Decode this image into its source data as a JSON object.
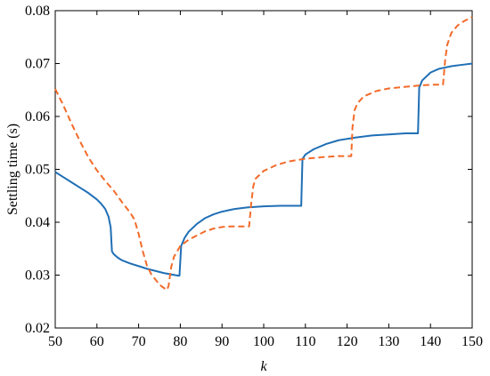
{
  "chart_data": {
    "type": "line",
    "xlabel": "k",
    "ylabel": "Settling time (s)",
    "xlim": [
      50,
      150
    ],
    "ylim": [
      0.02,
      0.08
    ],
    "xticks": [
      50,
      60,
      70,
      80,
      90,
      100,
      110,
      120,
      130,
      140,
      150
    ],
    "yticks": [
      0.02,
      0.03,
      0.04,
      0.05,
      0.06,
      0.07,
      0.08
    ],
    "ytick_labels": [
      "0.02",
      "0.03",
      "0.04",
      "0.05",
      "0.06",
      "0.07",
      "0.08"
    ],
    "grid": false,
    "series": [
      {
        "color": "#1f6fb5",
        "style": "solid",
        "x": [
          50,
          52,
          54,
          56,
          58,
          60,
          61,
          62,
          62.8,
          63.3,
          63.6,
          64,
          65,
          66,
          68,
          70,
          72,
          74,
          76,
          78,
          79.5,
          79.8,
          80.2,
          81,
          82,
          84,
          86,
          88,
          90,
          93,
          96,
          100,
          104,
          109,
          109.3,
          109.6,
          110,
          112,
          115,
          118,
          122,
          126,
          130,
          134,
          137,
          137.3,
          137.6,
          138,
          140,
          142,
          145,
          148,
          150
        ],
        "y": [
          0.0495,
          0.0485,
          0.0475,
          0.0465,
          0.0455,
          0.0443,
          0.0435,
          0.0425,
          0.041,
          0.039,
          0.0345,
          0.034,
          0.0333,
          0.0328,
          0.0322,
          0.0317,
          0.0312,
          0.0308,
          0.0304,
          0.0301,
          0.0299,
          0.0299,
          0.0355,
          0.037,
          0.0382,
          0.0397,
          0.0408,
          0.0415,
          0.042,
          0.0425,
          0.0428,
          0.043,
          0.0431,
          0.0431,
          0.052,
          0.0523,
          0.0528,
          0.0538,
          0.0548,
          0.0555,
          0.056,
          0.0564,
          0.0566,
          0.0568,
          0.0568,
          0.0655,
          0.066,
          0.0668,
          0.0683,
          0.069,
          0.0695,
          0.0698,
          0.07
        ]
      },
      {
        "color": "#f26b2a",
        "style": "dashed",
        "x": [
          50,
          52,
          54,
          56,
          58,
          60,
          62,
          64,
          66,
          68,
          69,
          70,
          71,
          72,
          73,
          74,
          75,
          76,
          76.8,
          77.2,
          77.8,
          78.5,
          80,
          82,
          84,
          86,
          88,
          90,
          92,
          94,
          96.5,
          97,
          97.5,
          98,
          100,
          103,
          106,
          110,
          114,
          118,
          121,
          121.3,
          121.8,
          122.5,
          124,
          127,
          130,
          134,
          138,
          141,
          143,
          143.5,
          144,
          145,
          146.5,
          148,
          150
        ],
        "y": [
          0.0652,
          0.062,
          0.0585,
          0.0552,
          0.0522,
          0.0498,
          0.0478,
          0.046,
          0.0438,
          0.0418,
          0.0405,
          0.0378,
          0.0345,
          0.0318,
          0.0302,
          0.0292,
          0.0282,
          0.0276,
          0.0272,
          0.028,
          0.0315,
          0.0335,
          0.0355,
          0.0367,
          0.0375,
          0.0383,
          0.0388,
          0.0391,
          0.0392,
          0.0392,
          0.0392,
          0.0435,
          0.0468,
          0.0482,
          0.0497,
          0.0508,
          0.0515,
          0.052,
          0.0523,
          0.0525,
          0.0525,
          0.058,
          0.0612,
          0.0625,
          0.0638,
          0.0648,
          0.0653,
          0.0656,
          0.0659,
          0.066,
          0.066,
          0.0705,
          0.0735,
          0.0758,
          0.0772,
          0.078,
          0.0788
        ]
      }
    ]
  }
}
